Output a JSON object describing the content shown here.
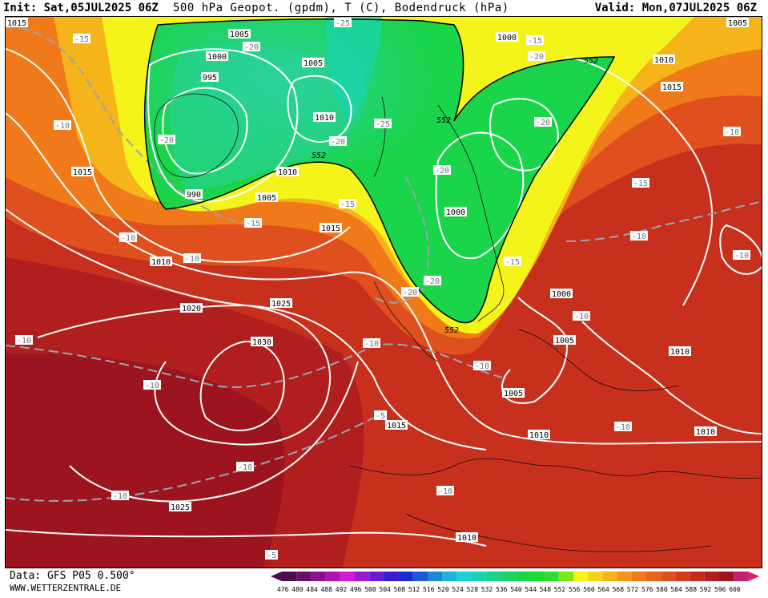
{
  "header": {
    "init": "Init: Sat,05JUL2025 06Z",
    "title": "500 hPa Geopot. (gpdm), T (C), Bodendruck (hPa)",
    "valid": "Valid: Mon,07JUL2025 06Z"
  },
  "footer": {
    "data": "Data: GFS P05 0.500°",
    "site": "WWW.WETTERZENTRALE.DE"
  },
  "legend": {
    "values": [
      "476",
      "480",
      "484",
      "488",
      "492",
      "496",
      "500",
      "504",
      "508",
      "512",
      "516",
      "520",
      "524",
      "528",
      "532",
      "536",
      "540",
      "544",
      "548",
      "552",
      "556",
      "560",
      "564",
      "568",
      "572",
      "576",
      "580",
      "584",
      "588",
      "592",
      "596",
      "600"
    ],
    "colors": [
      "#4b0d4b",
      "#6a0f6a",
      "#8c108c",
      "#b012b0",
      "#d41ad4",
      "#9a1ad4",
      "#6a1ad4",
      "#3a1ad4",
      "#1a2ad4",
      "#1a5ad4",
      "#1a8ad4",
      "#1ab4d4",
      "#1ad4d4",
      "#1ad4b0",
      "#1ad48a",
      "#1ad46a",
      "#1ad44a",
      "#1adc2a",
      "#2ae02a",
      "#7ce81a",
      "#f4f41a",
      "#f4d41a",
      "#f4b41a",
      "#f4941a",
      "#f07a1a",
      "#e8641a",
      "#e0501e",
      "#d43c1e",
      "#c42a1e",
      "#b01e1e",
      "#9c141e",
      "#c81e6e"
    ]
  },
  "isobar_labels": [
    "1015",
    "1010",
    "1005",
    "1000",
    "995",
    "990",
    "1005",
    "1000",
    "1010",
    "1005",
    "1010",
    "1015",
    "1020",
    "1025",
    "1030",
    "1025",
    "1015",
    "1010",
    "1005",
    "1010",
    "1010",
    "1000",
    "1005",
    "1010",
    "1015",
    "1010",
    "1000",
    "1015",
    "1010",
    "1005"
  ],
  "temperature_labels": [
    "-25",
    "-20",
    "-15",
    "-10",
    "-5"
  ],
  "height_labels": [
    "552"
  ]
}
